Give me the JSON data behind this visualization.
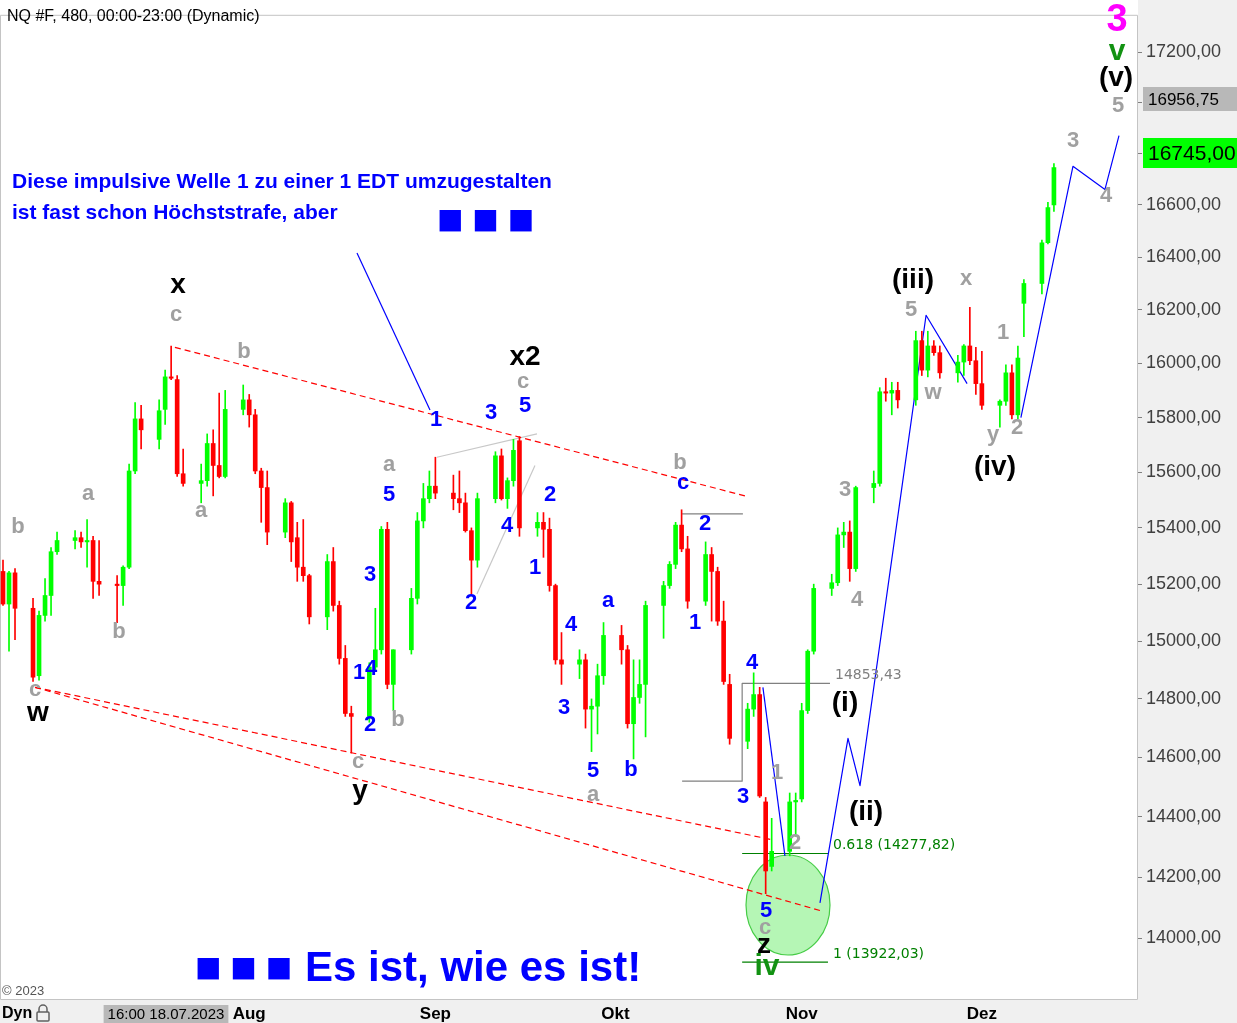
{
  "chart_data": {
    "type": "candlestick",
    "title": "NQ #F, 480, 00:00-23:00 (Dynamic)",
    "x": [
      "2023-06-21",
      "2023-06-22",
      "2023-06-23",
      "2023-06-26",
      "2023-06-27",
      "2023-06-28",
      "2023-06-29",
      "2023-06-30",
      "2023-07-03",
      "2023-07-04",
      "2023-07-05",
      "2023-07-06",
      "2023-07-07",
      "2023-07-10",
      "2023-07-11",
      "2023-07-12",
      "2023-07-13",
      "2023-07-14",
      "2023-07-17",
      "2023-07-18",
      "2023-07-19",
      "2023-07-20",
      "2023-07-21",
      "2023-07-24",
      "2023-07-25",
      "2023-07-26",
      "2023-07-27",
      "2023-07-28",
      "2023-07-31",
      "2023-08-01",
      "2023-08-02",
      "2023-08-03",
      "2023-08-04",
      "2023-08-07",
      "2023-08-08",
      "2023-08-09",
      "2023-08-10",
      "2023-08-11",
      "2023-08-14",
      "2023-08-15",
      "2023-08-16",
      "2023-08-17",
      "2023-08-18",
      "2023-08-21",
      "2023-08-22",
      "2023-08-23",
      "2023-08-24",
      "2023-08-25",
      "2023-08-28",
      "2023-08-29",
      "2023-08-30",
      "2023-08-31",
      "2023-09-01",
      "2023-09-04",
      "2023-09-05",
      "2023-09-06",
      "2023-09-07",
      "2023-09-08",
      "2023-09-11",
      "2023-09-12",
      "2023-09-13",
      "2023-09-14",
      "2023-09-15",
      "2023-09-18",
      "2023-09-19",
      "2023-09-20",
      "2023-09-21",
      "2023-09-22",
      "2023-09-25",
      "2023-09-26",
      "2023-09-27",
      "2023-09-28",
      "2023-09-29",
      "2023-10-02",
      "2023-10-03",
      "2023-10-04",
      "2023-10-05",
      "2023-10-06",
      "2023-10-09",
      "2023-10-10",
      "2023-10-11",
      "2023-10-12",
      "2023-10-13",
      "2023-10-16",
      "2023-10-17",
      "2023-10-18",
      "2023-10-19",
      "2023-10-20",
      "2023-10-23",
      "2023-10-24",
      "2023-10-25",
      "2023-10-26",
      "2023-10-27",
      "2023-10-30",
      "2023-10-31",
      "2023-11-01",
      "2023-11-02",
      "2023-11-03",
      "2023-11-06",
      "2023-11-07",
      "2023-11-08",
      "2023-11-09",
      "2023-11-10",
      "2023-11-13",
      "2023-11-14",
      "2023-11-15",
      "2023-11-16",
      "2023-11-17",
      "2023-11-20",
      "2023-11-21",
      "2023-11-22",
      "2023-11-23",
      "2023-11-24",
      "2023-11-27",
      "2023-11-28",
      "2023-11-29",
      "2023-11-30",
      "2023-12-01",
      "2023-12-04",
      "2023-12-05",
      "2023-12-06",
      "2023-12-07",
      "2023-12-08",
      "2023-12-11",
      "2023-12-12",
      "2023-12-13"
    ],
    "ohlc": [
      [
        15245,
        15285,
        15125,
        15130
      ],
      [
        15130,
        15245,
        14965,
        15240
      ],
      [
        15240,
        15255,
        15005,
        15115
      ],
      [
        15115,
        15150,
        14860,
        14875
      ],
      [
        14880,
        15105,
        14865,
        15090
      ],
      [
        15090,
        15220,
        15070,
        15160
      ],
      [
        15160,
        15330,
        15090,
        15315
      ],
      [
        15315,
        15385,
        15305,
        15355
      ],
      [
        15355,
        15390,
        15325,
        15365
      ],
      [
        15365,
        15385,
        15330,
        15350
      ],
      [
        15350,
        15430,
        15260,
        15355
      ],
      [
        15355,
        15370,
        15150,
        15210
      ],
      [
        15210,
        15355,
        15160,
        15200
      ],
      [
        15200,
        15230,
        15065,
        15195
      ],
      [
        15195,
        15265,
        15125,
        15260
      ],
      [
        15260,
        15630,
        15255,
        15605
      ],
      [
        15605,
        15855,
        15595,
        15795
      ],
      [
        15795,
        15845,
        15685,
        15755
      ],
      [
        15720,
        15865,
        15685,
        15825
      ],
      [
        15830,
        15975,
        15775,
        15950
      ],
      [
        15950,
        16065,
        15940,
        15945
      ],
      [
        15940,
        15955,
        15585,
        15595
      ],
      [
        15595,
        15685,
        15550,
        15560
      ],
      [
        15560,
        15630,
        15490,
        15570
      ],
      [
        15570,
        15740,
        15550,
        15705
      ],
      [
        15705,
        15755,
        15515,
        15625
      ],
      [
        15625,
        15890,
        15580,
        15585
      ],
      [
        15585,
        15900,
        15580,
        15830
      ],
      [
        15830,
        15920,
        15810,
        15865
      ],
      [
        15865,
        15885,
        15765,
        15810
      ],
      [
        15810,
        15830,
        15595,
        15605
      ],
      [
        15605,
        15615,
        15420,
        15545
      ],
      [
        15545,
        15605,
        15340,
        15385
      ],
      [
        15385,
        15505,
        15365,
        15490
      ],
      [
        15490,
        15495,
        15280,
        15350
      ],
      [
        15365,
        15420,
        15210,
        15260
      ],
      [
        15260,
        15430,
        15210,
        15230
      ],
      [
        15230,
        15235,
        15060,
        15085
      ],
      [
        15085,
        15305,
        15040,
        15280
      ],
      [
        15280,
        15330,
        15105,
        15125
      ],
      [
        15125,
        15140,
        14920,
        14940
      ],
      [
        14940,
        14985,
        14740,
        14750
      ],
      [
        14750,
        14775,
        14615,
        14740
      ],
      [
        14740,
        14925,
        14720,
        14910
      ],
      [
        14910,
        15115,
        14900,
        14970
      ],
      [
        14970,
        15405,
        14955,
        15395
      ],
      [
        15395,
        15420,
        14835,
        14850
      ],
      [
        14850,
        14970,
        14760,
        14970
      ],
      [
        14970,
        15185,
        14955,
        15150
      ],
      [
        15150,
        15455,
        15130,
        15425
      ],
      [
        15425,
        15560,
        15400,
        15505
      ],
      [
        15505,
        15605,
        15490,
        15550
      ],
      [
        15550,
        15655,
        15505,
        15525
      ],
      [
        15525,
        15590,
        15465,
        15505
      ],
      [
        15505,
        15605,
        15455,
        15490
      ],
      [
        15490,
        15525,
        15385,
        15390
      ],
      [
        15390,
        15400,
        15165,
        15285
      ],
      [
        15285,
        15525,
        15260,
        15505
      ],
      [
        15505,
        15675,
        15490,
        15660
      ],
      [
        15660,
        15685,
        15500,
        15505
      ],
      [
        15505,
        15580,
        15470,
        15570
      ],
      [
        15570,
        15720,
        15550,
        15680
      ],
      [
        15715,
        15730,
        15370,
        15400
      ],
      [
        15400,
        15455,
        15370,
        15420
      ],
      [
        15420,
        15455,
        15295,
        15395
      ],
      [
        15395,
        15435,
        15175,
        15195
      ],
      [
        15195,
        15200,
        14920,
        14935
      ],
      [
        14935,
        15030,
        14850,
        14920
      ],
      [
        14920,
        14970,
        14870,
        14935
      ],
      [
        14935,
        14955,
        14700,
        14765
      ],
      [
        14765,
        14800,
        14620,
        14775
      ],
      [
        14775,
        14920,
        14680,
        14880
      ],
      [
        14880,
        15065,
        14850,
        15020
      ],
      [
        15020,
        15055,
        14920,
        14970
      ],
      [
        14970,
        14985,
        14700,
        14715
      ],
      [
        14715,
        14935,
        14595,
        14805
      ],
      [
        14805,
        14935,
        14785,
        14850
      ],
      [
        14850,
        15140,
        14670,
        15125
      ],
      [
        15125,
        15210,
        15010,
        15195
      ],
      [
        15195,
        15280,
        15185,
        15270
      ],
      [
        15270,
        15420,
        15255,
        15410
      ],
      [
        15410,
        15465,
        15315,
        15325
      ],
      [
        15325,
        15370,
        15115,
        15140
      ],
      [
        15140,
        15350,
        15125,
        15305
      ],
      [
        15305,
        15330,
        15070,
        15245
      ],
      [
        15245,
        15260,
        15055,
        15070
      ],
      [
        15070,
        15140,
        14850,
        14860
      ],
      [
        14850,
        14885,
        14645,
        14665
      ],
      [
        14655,
        14785,
        14630,
        14765
      ],
      [
        14765,
        14890,
        14740,
        14815
      ],
      [
        14815,
        14840,
        14465,
        14470
      ],
      [
        14450,
        14465,
        14145,
        14220
      ],
      [
        14235,
        14395,
        14220,
        14285
      ],
      [
        14285,
        14480,
        14270,
        14450
      ],
      [
        14450,
        14480,
        14335,
        14455
      ],
      [
        14460,
        14785,
        14450,
        14760
      ],
      [
        14760,
        14970,
        14750,
        14965
      ],
      [
        14965,
        15200,
        14955,
        15185
      ],
      [
        15185,
        15235,
        15160,
        15205
      ],
      [
        15205,
        15400,
        15195,
        15375
      ],
      [
        15375,
        15420,
        15330,
        15385
      ],
      [
        15385,
        15425,
        15210,
        15255
      ],
      [
        15255,
        15550,
        15245,
        15545
      ],
      [
        15545,
        15605,
        15490,
        15560
      ],
      [
        15560,
        15910,
        15550,
        15895
      ],
      [
        15895,
        15945,
        15860,
        15890
      ],
      [
        15890,
        15930,
        15810,
        15900
      ],
      [
        15900,
        15930,
        15835,
        15865
      ],
      [
        15865,
        16120,
        15845,
        16085
      ],
      [
        16085,
        16120,
        15955,
        15975
      ],
      [
        15975,
        16120,
        15950,
        16065
      ],
      [
        16065,
        16085,
        16030,
        16040
      ],
      [
        16040,
        16065,
        15945,
        15965
      ],
      [
        15965,
        16030,
        15930,
        16005
      ],
      [
        16005,
        16070,
        15955,
        16065
      ],
      [
        16065,
        16210,
        15995,
        16010
      ],
      [
        16010,
        16060,
        15885,
        15925
      ],
      [
        15925,
        16045,
        15830,
        15845
      ],
      [
        15845,
        15865,
        15765,
        15860
      ],
      [
        15860,
        15995,
        15845,
        15965
      ],
      [
        15965,
        15995,
        15795,
        15810
      ],
      [
        15810,
        16065,
        15795,
        16020
      ],
      [
        16225,
        16315,
        16100,
        16300
      ],
      [
        16300,
        16465,
        16260,
        16455
      ],
      [
        16455,
        16610,
        16450,
        16590
      ],
      [
        16600,
        16760,
        16575,
        16745
      ]
    ],
    "colors": [
      "#ff0000",
      "#00ff00",
      "#ff0000",
      "#ff0000",
      "#00ff00",
      "#00ff00",
      "#00ff00",
      "#00ff00",
      "#00ff00",
      "#ff0000",
      "#00ff00",
      "#ff0000",
      "#ff0000",
      "#ff0000",
      "#00ff00",
      "#00ff00",
      "#00ff00",
      "#ff0000",
      "#00ff00",
      "#00ff00",
      "#ff0000",
      "#ff0000",
      "#ff0000",
      "#00ff00",
      "#00ff00",
      "#ff0000",
      "#ff0000",
      "#00ff00",
      "#00ff00",
      "#ff0000",
      "#ff0000",
      "#ff0000",
      "#ff0000",
      "#00ff00",
      "#ff0000",
      "#ff0000",
      "#ff0000",
      "#ff0000",
      "#00ff00",
      "#ff0000",
      "#ff0000",
      "#ff0000",
      "#ff0000",
      "#00ff00",
      "#00ff00",
      "#00ff00",
      "#ff0000",
      "#00ff00",
      "#00ff00",
      "#00ff00",
      "#00ff00",
      "#00ff00",
      "#ff0000",
      "#ff0000",
      "#ff0000",
      "#ff0000",
      "#ff0000",
      "#00ff00",
      "#00ff00",
      "#ff0000",
      "#00ff00",
      "#00ff00",
      "#ff0000",
      "#00ff00",
      "#ff0000",
      "#ff0000",
      "#ff0000",
      "#ff0000",
      "#00ff00",
      "#ff0000",
      "#00ff00",
      "#00ff00",
      "#00ff00",
      "#ff0000",
      "#ff0000",
      "#00ff00",
      "#00ff00",
      "#00ff00",
      "#00ff00",
      "#00ff00",
      "#00ff00",
      "#ff0000",
      "#ff0000",
      "#00ff00",
      "#ff0000",
      "#ff0000",
      "#ff0000",
      "#ff0000",
      "#00ff00",
      "#00ff00",
      "#ff0000",
      "#ff0000",
      "#00ff00",
      "#00ff00",
      "#00ff00",
      "#00ff00",
      "#00ff00",
      "#00ff00",
      "#00ff00",
      "#00ff00",
      "#00ff00",
      "#ff0000",
      "#00ff00",
      "#00ff00",
      "#00ff00",
      "#ff0000",
      "#00ff00",
      "#ff0000",
      "#00ff00",
      "#ff0000",
      "#00ff00",
      "#ff0000",
      "#ff0000",
      "#00ff00",
      "#00ff00",
      "#ff0000",
      "#ff0000",
      "#ff0000",
      "#00ff00",
      "#00ff00",
      "#ff0000",
      "#00ff00",
      "#00ff00",
      "#00ff00",
      "#00ff00",
      "#00ff00"
    ],
    "xlim": [
      "2023-06-20T12:00",
      "2023-12-27"
    ],
    "xticks": [
      {
        "value": "2023-08-01",
        "label": "Aug"
      },
      {
        "value": "2023-09-01",
        "label": "Sep"
      },
      {
        "value": "2023-10-01",
        "label": "Okt"
      },
      {
        "value": "2023-11-01",
        "label": "Nov"
      },
      {
        "value": "2023-12-01",
        "label": "Dez"
      }
    ],
    "ylim": [
      13800,
      17350
    ],
    "yticks": [
      {
        "value": 14000,
        "label": "14000,00"
      },
      {
        "value": 14200,
        "label": "14200,00"
      },
      {
        "value": 14400,
        "label": "14400,00"
      },
      {
        "value": 14600,
        "label": "14600,00"
      },
      {
        "value": 14800,
        "label": "14800,00"
      },
      {
        "value": 15000,
        "label": "15000,00"
      },
      {
        "value": 15200,
        "label": "15200,00"
      },
      {
        "value": 15400,
        "label": "15400,00"
      },
      {
        "value": 15600,
        "label": "15600,00"
      },
      {
        "value": 15800,
        "label": "15800,00"
      },
      {
        "value": 16000,
        "label": "16000,00"
      },
      {
        "value": 16200,
        "label": "16200,00"
      },
      {
        "value": 16400,
        "label": "16400,00"
      },
      {
        "value": 16600,
        "label": "16600,00"
      },
      {
        "value": 16800,
        "label": null
      },
      {
        "value": 17000,
        "label": null
      },
      {
        "value": 17200,
        "label": "17200,00"
      }
    ],
    "log": true,
    "series": [
      {
        "type": "line",
        "color": "#ff0000",
        "line_style": "dashed",
        "x": [
          "2023-07-19T15:00",
          "2023-10-22T13:00"
        ],
        "values": [
          16060,
          15515
        ]
      },
      {
        "type": "line",
        "color": "#ff0000",
        "line_style": "dashed",
        "x": [
          "2023-06-26T08:00",
          "2023-10-26T18:00"
        ],
        "values": [
          14840,
          14325
        ]
      },
      {
        "type": "line",
        "color": "#ff0000",
        "line_style": "dashed",
        "x": [
          "2023-06-26T08:00",
          "2023-11-04T01:00"
        ],
        "values": [
          14840,
          14090
        ]
      },
      {
        "type": "line",
        "color": "#0000ff",
        "x": [
          "2023-10-25T13:00",
          "2023-10-29T05:00"
        ],
        "values": [
          14840,
          14270
        ]
      },
      {
        "type": "line",
        "color": "#0000ff",
        "x": [
          "2023-11-04T01:00",
          "2023-11-08T17:00",
          "2023-11-10T17:00",
          "2023-11-21T17:00",
          "2023-11-28T13:00"
        ],
        "values": [
          14115,
          14665,
          14505,
          16180,
          15925
        ]
      },
      {
        "type": "line",
        "color": "#0000ff",
        "x": [
          "2023-12-07T12:00",
          "2023-12-16T04:00",
          "2023-12-21T12:00",
          "2023-12-23T20:00"
        ],
        "values": [
          15800,
          16750,
          16660,
          16870
        ]
      },
      {
        "type": "line",
        "color": "#c8c8c8",
        "x": [
          "2023-09-01T06:00",
          "2023-09-17T22:00"
        ],
        "values": [
          15655,
          15740
        ]
      },
      {
        "type": "line",
        "color": "#c8c8c8",
        "x": [
          "2023-09-07T22:00",
          "2023-09-17T14:00"
        ],
        "values": [
          15165,
          15625
        ]
      },
      {
        "type": "line",
        "color": "#808080",
        "x": [
          "2023-10-12T02:00",
          "2023-10-22T05:00"
        ],
        "values": [
          15450,
          15450
        ]
      },
      {
        "type": "line",
        "color": "#808080",
        "x": [
          "2023-10-12T02:00",
          "2023-10-22T02:00",
          "2023-10-22T02:00",
          "2023-11-05T17:00"
        ],
        "values": [
          14520,
          14520,
          14853.43,
          14853.43
        ]
      },
      {
        "type": "line",
        "color": "#008000",
        "x": [
          "2023-10-22T02:00",
          "2023-11-05T09:00"
        ],
        "values": [
          14277.82,
          14277.82
        ]
      },
      {
        "type": "line",
        "color": "#008000",
        "x": [
          "2023-10-22T02:00",
          "2023-11-05T09:00"
        ],
        "values": [
          13922.03,
          13922.03
        ]
      }
    ],
    "annotations": [
      "b",
      "c",
      "a",
      "b",
      "c",
      "a",
      "b",
      "c",
      "a",
      "b",
      "c",
      "b",
      "a",
      "1",
      "2",
      "c",
      "3",
      "4",
      "5",
      "w",
      "x",
      "1",
      "y",
      "2",
      "3",
      "4",
      "5",
      "1",
      "3",
      "5",
      "5",
      "3",
      "4",
      "1",
      "2",
      "4",
      "2",
      "2",
      "1",
      "4",
      "3",
      "5",
      "a",
      "b",
      "c",
      "2",
      "1",
      "4",
      "3",
      "5",
      "x",
      "w",
      "y",
      "x2",
      "z",
      "(iii)",
      "(iv)",
      "(v)",
      "(i)",
      "(ii)",
      "v",
      "iv",
      "3",
      "Diese impulsive Welle 1 zu einer 1 EDT umzugestalten",
      "ist fast schon Höchststrafe, aber",
      "■ ■ ■",
      "■ ■ ■",
      "Es ist, wie es ist!",
      "© 2023",
      "Dyn",
      "16956,75",
      "16745,00",
      "16:00 18.07.2023",
      {
        "text": "14853,43",
        "x": "2023-11-05T17:00",
        "y": 14853.43
      },
      {
        "text": "0.618 (14277,82)",
        "x": "2023-11-05T09:00",
        "y": 14277.82
      },
      {
        "text": "1 (13922,03)",
        "x": "2023-11-05T09:00",
        "y": 13922.03
      }
    ]
  }
}
